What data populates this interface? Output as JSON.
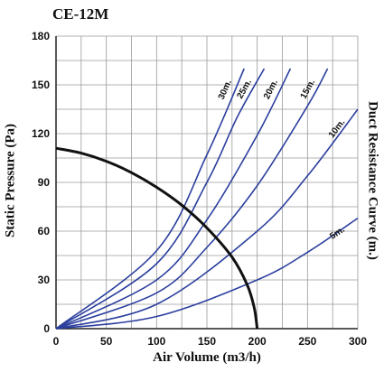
{
  "chart_data": {
    "type": "line",
    "title": "CE-12M",
    "xlabel": "Air Volume (m3/h)",
    "ylabel": "Static Pressure (Pa)",
    "right_label": "Duct Resistance Curve (m.)",
    "xlim": [
      0,
      300
    ],
    "ylim": [
      0,
      180
    ],
    "x_ticks": [
      0,
      50,
      100,
      150,
      200,
      250,
      300
    ],
    "y_ticks": [
      0,
      30,
      60,
      90,
      120,
      150,
      180
    ],
    "grid": true,
    "colors": {
      "fan_curve": "#111111",
      "duct_curves": "#2b3f9e",
      "grid": "#9a9a9a"
    },
    "fan_curve": {
      "name": "",
      "points": [
        [
          0,
          111
        ],
        [
          25,
          108
        ],
        [
          50,
          103
        ],
        [
          75,
          96
        ],
        [
          100,
          87
        ],
        [
          125,
          76
        ],
        [
          150,
          62
        ],
        [
          175,
          44
        ],
        [
          190,
          27
        ],
        [
          197,
          13
        ],
        [
          200,
          0
        ]
      ]
    },
    "duct_curves": [
      {
        "label": "5m.",
        "points": [
          [
            0,
            0
          ],
          [
            100,
            7.5
          ],
          [
            200,
            30
          ],
          [
            250,
            47
          ],
          [
            300,
            68
          ]
        ]
      },
      {
        "label": "10m.",
        "points": [
          [
            0,
            0
          ],
          [
            100,
            15
          ],
          [
            200,
            60
          ],
          [
            250,
            94
          ],
          [
            300,
            135
          ]
        ]
      },
      {
        "label": "15m.",
        "points": [
          [
            0,
            0
          ],
          [
            100,
            22
          ],
          [
            150,
            50
          ],
          [
            200,
            88
          ],
          [
            250,
            137
          ],
          [
            270,
            160
          ]
        ]
      },
      {
        "label": "20m.",
        "points": [
          [
            0,
            0
          ],
          [
            100,
            30
          ],
          [
            150,
            67
          ],
          [
            200,
            119
          ],
          [
            233,
            160
          ]
        ]
      },
      {
        "label": "25m.",
        "points": [
          [
            0,
            0
          ],
          [
            100,
            40
          ],
          [
            150,
            90
          ],
          [
            180,
            130
          ],
          [
            207,
            160
          ]
        ]
      },
      {
        "label": "30m.",
        "points": [
          [
            0,
            0
          ],
          [
            100,
            48
          ],
          [
            150,
            107
          ],
          [
            187,
            160
          ]
        ]
      }
    ]
  }
}
